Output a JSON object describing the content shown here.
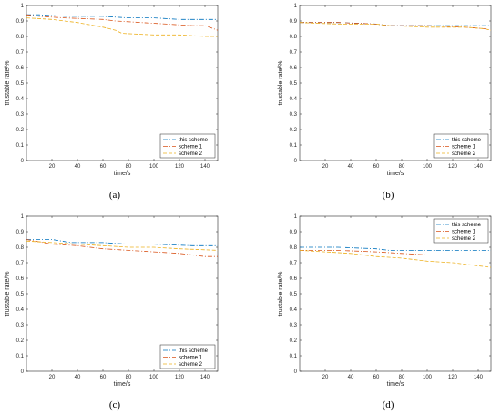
{
  "chart_data": [
    {
      "type": "line",
      "caption": "(a)",
      "xlabel": "time/s",
      "ylabel": "trustable rate/%",
      "xlim": [
        0,
        150
      ],
      "ylim": [
        0,
        1
      ],
      "xticks": [
        20,
        40,
        60,
        80,
        100,
        120,
        140
      ],
      "yticks": [
        0,
        0.1,
        0.2,
        0.3,
        0.4,
        0.5,
        0.6,
        0.7,
        0.8,
        0.9,
        1
      ],
      "legend_position": "bottom-right",
      "series": [
        {
          "name": "this scheme",
          "color": "#0072BD",
          "dash": "dashdot",
          "x": [
            0,
            10,
            30,
            60,
            80,
            100,
            120,
            150
          ],
          "y": [
            0.94,
            0.94,
            0.93,
            0.93,
            0.92,
            0.92,
            0.91,
            0.91
          ]
        },
        {
          "name": "scheme 1",
          "color": "#D95319",
          "dash": "dashdot",
          "x": [
            0,
            10,
            30,
            60,
            70,
            90,
            110,
            130,
            140,
            150
          ],
          "y": [
            0.94,
            0.93,
            0.92,
            0.91,
            0.9,
            0.89,
            0.88,
            0.87,
            0.87,
            0.84
          ]
        },
        {
          "name": "scheme 2",
          "color": "#EDB120",
          "dash": "dash",
          "x": [
            0,
            20,
            40,
            60,
            70,
            75,
            100,
            120,
            140,
            150
          ],
          "y": [
            0.92,
            0.91,
            0.89,
            0.86,
            0.84,
            0.82,
            0.81,
            0.81,
            0.8,
            0.8
          ]
        }
      ]
    },
    {
      "type": "line",
      "caption": "(b)",
      "xlabel": "time/s",
      "ylabel": "trustable rate/%",
      "xlim": [
        0,
        150
      ],
      "ylim": [
        0,
        1
      ],
      "xticks": [
        20,
        40,
        60,
        80,
        100,
        120,
        140
      ],
      "yticks": [
        0,
        0.1,
        0.2,
        0.3,
        0.4,
        0.5,
        0.6,
        0.7,
        0.8,
        0.9,
        1
      ],
      "legend_position": "bottom-right",
      "series": [
        {
          "name": "this scheme",
          "color": "#0072BD",
          "dash": "dashdot",
          "x": [
            0,
            30,
            60,
            70,
            100,
            130,
            150
          ],
          "y": [
            0.89,
            0.89,
            0.88,
            0.87,
            0.87,
            0.87,
            0.87
          ]
        },
        {
          "name": "scheme 1",
          "color": "#D95319",
          "dash": "dashdot",
          "x": [
            0,
            30,
            60,
            70,
            100,
            130,
            145,
            150
          ],
          "y": [
            0.89,
            0.89,
            0.88,
            0.87,
            0.87,
            0.86,
            0.85,
            0.84
          ]
        },
        {
          "name": "scheme 2",
          "color": "#EDB120",
          "dash": "dash",
          "x": [
            0,
            30,
            60,
            70,
            100,
            130,
            145,
            150
          ],
          "y": [
            0.89,
            0.88,
            0.88,
            0.87,
            0.86,
            0.86,
            0.85,
            0.84
          ]
        }
      ]
    },
    {
      "type": "line",
      "caption": "(c)",
      "xlabel": "time/s",
      "ylabel": "trustable rate/%",
      "xlim": [
        0,
        150
      ],
      "ylim": [
        0,
        1
      ],
      "xticks": [
        20,
        40,
        60,
        80,
        100,
        120,
        140
      ],
      "yticks": [
        0,
        0.1,
        0.2,
        0.3,
        0.4,
        0.5,
        0.6,
        0.7,
        0.8,
        0.9,
        1
      ],
      "legend_position": "bottom-right",
      "series": [
        {
          "name": "this scheme",
          "color": "#0072BD",
          "dash": "dashdot",
          "x": [
            0,
            20,
            35,
            60,
            80,
            100,
            130,
            150
          ],
          "y": [
            0.85,
            0.85,
            0.83,
            0.83,
            0.82,
            0.82,
            0.81,
            0.81
          ]
        },
        {
          "name": "scheme 1",
          "color": "#D95319",
          "dash": "dashdot",
          "x": [
            0,
            20,
            40,
            60,
            80,
            100,
            120,
            140,
            150
          ],
          "y": [
            0.85,
            0.82,
            0.81,
            0.79,
            0.78,
            0.77,
            0.76,
            0.74,
            0.74
          ]
        },
        {
          "name": "scheme 2",
          "color": "#EDB120",
          "dash": "dash",
          "x": [
            0,
            20,
            40,
            60,
            80,
            100,
            120,
            150
          ],
          "y": [
            0.84,
            0.83,
            0.82,
            0.81,
            0.8,
            0.8,
            0.79,
            0.78
          ]
        }
      ]
    },
    {
      "type": "line",
      "caption": "(d)",
      "xlabel": "time/s",
      "ylabel": "trustable rate/%",
      "xlim": [
        0,
        150
      ],
      "ylim": [
        0,
        1
      ],
      "xticks": [
        20,
        40,
        60,
        80,
        100,
        120,
        140
      ],
      "yticks": [
        0,
        0.1,
        0.2,
        0.3,
        0.4,
        0.5,
        0.6,
        0.7,
        0.8,
        0.9,
        1
      ],
      "legend_position": "top-right",
      "series": [
        {
          "name": "this scheme",
          "color": "#0072BD",
          "dash": "dashdot",
          "x": [
            0,
            30,
            60,
            70,
            100,
            130,
            150
          ],
          "y": [
            0.8,
            0.8,
            0.79,
            0.78,
            0.78,
            0.78,
            0.78
          ]
        },
        {
          "name": "scheme 1",
          "color": "#D95319",
          "dash": "dashdot",
          "x": [
            0,
            30,
            60,
            80,
            100,
            120,
            150
          ],
          "y": [
            0.78,
            0.78,
            0.77,
            0.76,
            0.75,
            0.75,
            0.75
          ]
        },
        {
          "name": "scheme 2",
          "color": "#EDB120",
          "dash": "dash",
          "x": [
            0,
            20,
            40,
            60,
            80,
            100,
            120,
            140,
            150
          ],
          "y": [
            0.78,
            0.77,
            0.76,
            0.74,
            0.73,
            0.71,
            0.7,
            0.68,
            0.67
          ]
        }
      ]
    }
  ]
}
